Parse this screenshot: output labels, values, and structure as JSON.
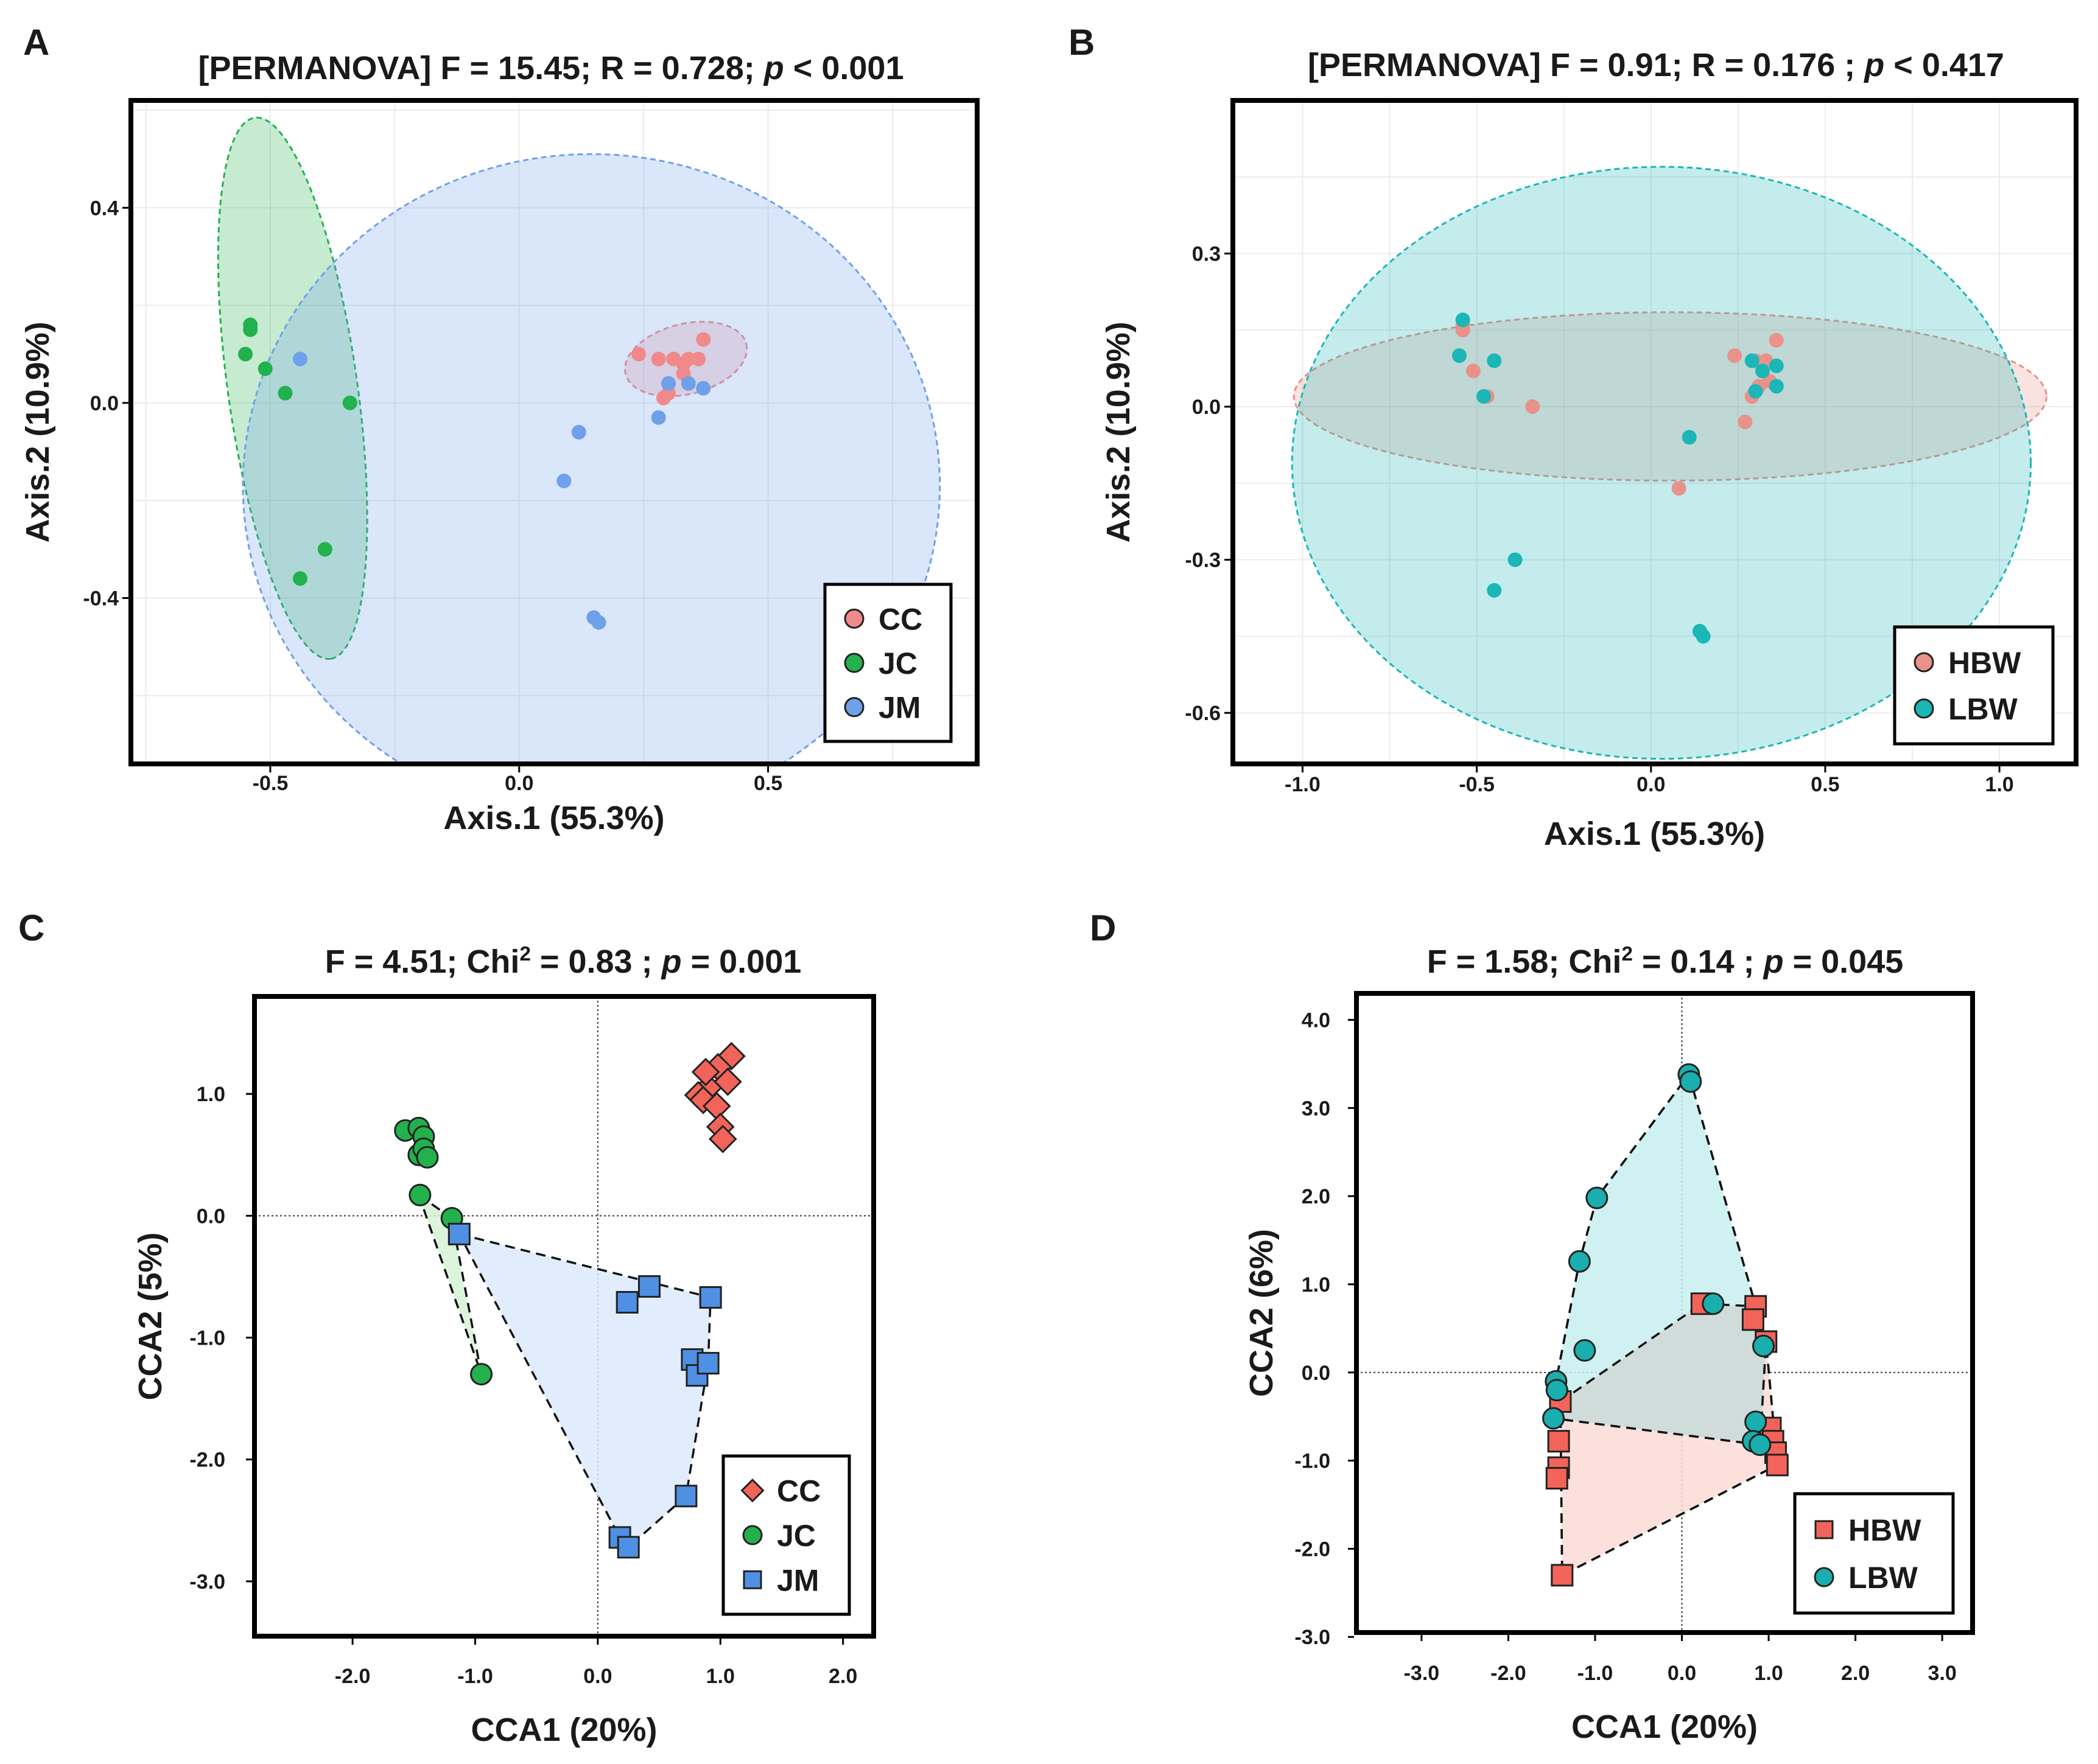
{
  "chart_data": [
    {
      "panel": "A",
      "type": "scatter",
      "title_prefix": "[PERMANOVA] F = 15.45; R = 0.728; ",
      "title_p": "p",
      "title_suffix": " < 0.001",
      "xlabel": "Axis.1 (55.3%)",
      "ylabel": "Axis.2 (10.9%)",
      "xlim": [
        -0.78,
        0.92
      ],
      "ylim": [
        -0.74,
        0.62
      ],
      "xticks": [
        "-0.5",
        "0.0",
        "0.5"
      ],
      "xtick_values": [
        -0.5,
        0.0,
        0.5
      ],
      "yticks": [
        "0.4",
        "0.0",
        "-0.4"
      ],
      "ytick_values": [
        0.4,
        0.0,
        -0.4
      ],
      "grid": true,
      "legend_position": "bottom-right",
      "marker": "circle",
      "series": [
        {
          "name": "CC",
          "color": "#f08a8a",
          "points": [
            [
              0.24,
              0.1
            ],
            [
              0.28,
              0.09
            ],
            [
              0.31,
              0.09
            ],
            [
              0.33,
              0.08
            ],
            [
              0.34,
              0.09
            ],
            [
              0.36,
              0.09
            ],
            [
              0.37,
              0.13
            ],
            [
              0.33,
              0.06
            ],
            [
              0.3,
              0.02
            ],
            [
              0.29,
              0.01
            ]
          ],
          "ellipse": {
            "cx": 0.335,
            "cy": 0.09,
            "rx": 0.125,
            "ry": 0.072,
            "angle_deg": 14
          }
        },
        {
          "name": "JC",
          "color": "#22b14c",
          "points": [
            [
              -0.54,
              0.16
            ],
            [
              -0.54,
              0.15
            ],
            [
              -0.55,
              0.1
            ],
            [
              -0.51,
              0.07
            ],
            [
              -0.47,
              0.02
            ],
            [
              -0.34,
              0.0
            ],
            [
              -0.39,
              -0.3
            ],
            [
              -0.44,
              -0.36
            ]
          ],
          "ellipse": {
            "cx": -0.455,
            "cy": 0.03,
            "rx": 0.56,
            "ry": 0.13,
            "angle_deg": -82
          }
        },
        {
          "name": "JM",
          "color": "#6fa0ea",
          "points": [
            [
              -0.44,
              0.09
            ],
            [
              0.3,
              0.04
            ],
            [
              0.34,
              0.04
            ],
            [
              0.37,
              0.03
            ],
            [
              0.28,
              -0.03
            ],
            [
              0.12,
              -0.06
            ],
            [
              0.09,
              -0.16
            ],
            [
              0.15,
              -0.44
            ],
            [
              0.16,
              -0.45
            ]
          ],
          "ellipse": {
            "cx": 0.145,
            "cy": -0.17,
            "rx": 0.7,
            "ry": 0.68,
            "angle_deg": 0
          }
        }
      ],
      "legend": [
        "CC",
        "JC",
        "JM"
      ]
    },
    {
      "panel": "B",
      "type": "scatter",
      "title_prefix": "[PERMANOVA] F = 0.91;  R = 0.176 ;  ",
      "title_p": "p",
      "title_suffix": " < 0.417",
      "xlabel": "Axis.1 (55.3%)",
      "ylabel": "Axis.2 (10.9%)",
      "xlim": [
        -1.2,
        1.22
      ],
      "ylim": [
        -0.7,
        0.6
      ],
      "xticks": [
        "-1.0",
        "-0.5",
        "0.0",
        "0.5",
        "1.0"
      ],
      "xtick_values": [
        -1.0,
        -0.5,
        0.0,
        0.5,
        1.0
      ],
      "yticks": [
        "0.3",
        "0.0",
        "-0.3",
        "-0.6"
      ],
      "ytick_values": [
        0.3,
        0.0,
        -0.3,
        -0.6
      ],
      "grid": true,
      "legend_position": "bottom-right",
      "marker": "circle",
      "series": [
        {
          "name": "HBW",
          "color": "#e8928a",
          "points": [
            [
              -0.54,
              0.16
            ],
            [
              -0.54,
              0.15
            ],
            [
              -0.55,
              0.1
            ],
            [
              -0.51,
              0.07
            ],
            [
              -0.47,
              0.02
            ],
            [
              -0.34,
              0.0
            ],
            [
              0.08,
              -0.16
            ],
            [
              0.24,
              0.1
            ],
            [
              0.3,
              0.09
            ],
            [
              0.33,
              0.09
            ],
            [
              0.36,
              0.13
            ],
            [
              0.31,
              0.04
            ],
            [
              0.34,
              0.05
            ],
            [
              0.27,
              -0.03
            ],
            [
              0.29,
              0.02
            ]
          ],
          "ellipse": {
            "cx": 0.055,
            "cy": 0.02,
            "rx": 1.08,
            "ry": 0.165,
            "angle_deg": 0
          }
        },
        {
          "name": "LBW",
          "color": "#1bb6b6",
          "points": [
            [
              -0.54,
              0.17
            ],
            [
              -0.55,
              0.1
            ],
            [
              -0.48,
              0.02
            ],
            [
              -0.45,
              0.09
            ],
            [
              -0.39,
              -0.3
            ],
            [
              -0.45,
              -0.36
            ],
            [
              0.11,
              -0.06
            ],
            [
              0.14,
              -0.44
            ],
            [
              0.15,
              -0.45
            ],
            [
              0.29,
              0.09
            ],
            [
              0.32,
              0.07
            ],
            [
              0.36,
              0.08
            ],
            [
              0.3,
              0.03
            ],
            [
              0.36,
              0.04
            ]
          ],
          "ellipse": {
            "cx": 0.03,
            "cy": -0.11,
            "rx": 1.06,
            "ry": 0.58,
            "angle_deg": 0
          }
        }
      ],
      "legend": [
        "HBW",
        "LBW"
      ]
    },
    {
      "panel": "C",
      "type": "scatter",
      "title_prefix": "F = 4.51; Chi",
      "title_sup": "2",
      "title_mid": " = 0.83 ; ",
      "title_p": "p",
      "title_suffix": " = 0.001",
      "xlabel": "CCA1 (20%)",
      "ylabel": "CCA2 (5%)",
      "xlim": [
        -2.8,
        2.25
      ],
      "ylim": [
        -3.45,
        1.8
      ],
      "xticks": [
        "-2.0",
        "-1.0",
        "0.0",
        "1.0",
        "2.0"
      ],
      "xtick_values": [
        -2.0,
        -1.0,
        0.0,
        1.0,
        2.0
      ],
      "yticks": [
        "1.0",
        "0.0",
        "-1.0",
        "-2.0",
        "-3.0"
      ],
      "ytick_values": [
        1.0,
        0.0,
        -1.0,
        -2.0,
        -3.0
      ],
      "grid": false,
      "reference_lines": {
        "x": 0,
        "y": 0
      },
      "legend_position": "bottom-right",
      "series": [
        {
          "name": "CC",
          "color": "#f2645a",
          "marker": "diamond",
          "points": [
            [
              1.09,
              1.31
            ],
            [
              0.98,
              1.22
            ],
            [
              1.06,
              1.1
            ],
            [
              0.9,
              1.05
            ],
            [
              0.82,
              0.99
            ],
            [
              0.86,
              0.95
            ],
            [
              0.97,
              0.9
            ],
            [
              1.0,
              0.73
            ],
            [
              1.02,
              0.63
            ],
            [
              0.88,
              1.18
            ]
          ],
          "hull": []
        },
        {
          "name": "JC",
          "color": "#22b14c",
          "marker": "circle",
          "points": [
            [
              -1.57,
              0.7
            ],
            [
              -1.46,
              0.72
            ],
            [
              -1.42,
              0.65
            ],
            [
              -1.46,
              0.5
            ],
            [
              -1.42,
              0.55
            ],
            [
              -1.39,
              0.48
            ],
            [
              -1.45,
              0.17
            ],
            [
              -1.19,
              -0.02
            ],
            [
              -0.95,
              -1.3
            ]
          ],
          "hull": [
            [
              -1.46,
              0.17
            ],
            [
              -1.19,
              -0.02
            ],
            [
              -0.95,
              -1.3
            ]
          ],
          "fill": "#d6f2d6"
        },
        {
          "name": "JM",
          "color": "#4f90e4",
          "marker": "square",
          "points": [
            [
              -1.13,
              -0.15
            ],
            [
              0.24,
              -0.71
            ],
            [
              0.42,
              -0.58
            ],
            [
              0.92,
              -0.67
            ],
            [
              0.77,
              -1.18
            ],
            [
              0.81,
              -1.31
            ],
            [
              0.9,
              -1.21
            ],
            [
              0.72,
              -2.3
            ],
            [
              0.18,
              -2.64
            ],
            [
              0.25,
              -2.72
            ]
          ],
          "hull": [
            [
              -1.13,
              -0.15
            ],
            [
              0.92,
              -0.67
            ],
            [
              0.9,
              -1.21
            ],
            [
              0.72,
              -2.3
            ],
            [
              0.25,
              -2.72
            ],
            [
              0.18,
              -2.64
            ]
          ],
          "fill": "#dce9fb"
        }
      ],
      "legend": [
        "CC",
        "JC",
        "JM"
      ]
    },
    {
      "panel": "D",
      "type": "scatter",
      "title_prefix": "F = 1.58; Chi",
      "title_sup": "2",
      "title_mid": " = 0.14 ; ",
      "title_p": "p",
      "title_suffix": " = 0.045",
      "xlabel": "CCA1 (20%)",
      "ylabel": "CCA2 (6%)",
      "xlim": [
        -3.75,
        3.35
      ],
      "ylim": [
        -2.95,
        4.3
      ],
      "xticks": [
        "-3.0",
        "-2.0",
        "-1.0",
        "0.0",
        "1.0",
        "2.0",
        "3.0"
      ],
      "xtick_values": [
        -3.0,
        -2.0,
        -1.0,
        0.0,
        1.0,
        2.0,
        3.0
      ],
      "yticks": [
        "4.0",
        "3.0",
        "2.0",
        "1.0",
        "0.0",
        "-1.0",
        "-2.0",
        "-3.0"
      ],
      "ytick_values": [
        4.0,
        3.0,
        2.0,
        1.0,
        0.0,
        -1.0,
        -2.0,
        -3.0
      ],
      "grid": false,
      "reference_lines": {
        "x": 0,
        "y": 0
      },
      "legend_position": "bottom-right",
      "series": [
        {
          "name": "HBW",
          "color": "#f2645a",
          "marker": "square",
          "points": [
            [
              0.23,
              0.78
            ],
            [
              0.85,
              0.75
            ],
            [
              0.82,
              0.6
            ],
            [
              0.97,
              0.35
            ],
            [
              1.02,
              -0.63
            ],
            [
              1.05,
              -0.78
            ],
            [
              1.08,
              -0.91
            ],
            [
              1.1,
              -1.05
            ],
            [
              -1.4,
              -0.33
            ],
            [
              -1.42,
              -0.78
            ],
            [
              -1.42,
              -1.08
            ],
            [
              -1.44,
              -1.2
            ],
            [
              -1.38,
              -2.3
            ]
          ],
          "hull": [
            [
              -1.4,
              -0.33
            ],
            [
              0.23,
              0.78
            ],
            [
              0.85,
              0.75
            ],
            [
              0.97,
              0.35
            ],
            [
              1.1,
              -1.05
            ],
            [
              -1.38,
              -2.3
            ]
          ],
          "fill": "#fadbd6"
        },
        {
          "name": "LBW",
          "color": "#1aaeae",
          "marker": "circle",
          "points": [
            [
              0.08,
              3.38
            ],
            [
              0.1,
              3.3
            ],
            [
              -0.98,
              1.98
            ],
            [
              -1.18,
              1.26
            ],
            [
              -1.12,
              0.25
            ],
            [
              -1.45,
              -0.1
            ],
            [
              -1.44,
              -0.2
            ],
            [
              -1.48,
              -0.52
            ],
            [
              0.36,
              0.78
            ],
            [
              0.94,
              0.3
            ],
            [
              0.85,
              -0.56
            ],
            [
              0.82,
              -0.78
            ],
            [
              0.9,
              -0.82
            ]
          ],
          "hull": [
            [
              0.08,
              3.38
            ],
            [
              0.97,
              0.35
            ],
            [
              0.9,
              -0.82
            ],
            [
              -1.48,
              -0.52
            ],
            [
              -1.45,
              -0.1
            ],
            [
              -1.18,
              1.26
            ],
            [
              -0.98,
              1.98
            ]
          ],
          "fill": "#c8eeee"
        }
      ],
      "overlap_fill": "#cfd8d6",
      "legend": [
        "HBW",
        "LBW"
      ]
    }
  ],
  "panel_labels": [
    "A",
    "B",
    "C",
    "D"
  ]
}
